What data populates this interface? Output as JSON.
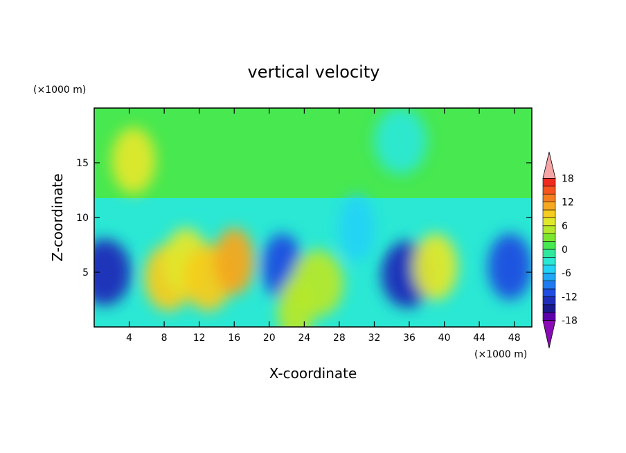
{
  "chart_data": {
    "type": "heatmap",
    "title": "vertical velocity",
    "xlabel": "X-coordinate",
    "ylabel": "Z-coordinate",
    "x_unit": "(×1000 m)",
    "y_unit": "(×1000 m)",
    "xlim": [
      0,
      50
    ],
    "ylim": [
      0,
      20
    ],
    "x_ticks": [
      "4",
      "8",
      "12",
      "16",
      "20",
      "24",
      "28",
      "32",
      "36",
      "40",
      "44",
      "48"
    ],
    "y_ticks": [
      "5",
      "10",
      "15"
    ],
    "colorbar": {
      "tick_labels": [
        "18",
        "12",
        "6",
        "0",
        "-6",
        "-12",
        "-18"
      ],
      "levels": [
        -20,
        -18,
        -16,
        -14,
        -12,
        -10,
        -8,
        -6,
        -4,
        -2,
        0,
        2,
        4,
        6,
        8,
        10,
        12,
        14,
        16,
        18,
        20
      ],
      "colors": [
        "#8a0ab5",
        "#5c00a8",
        "#1a1a8c",
        "#1f2db8",
        "#1f4ee0",
        "#1f7af0",
        "#1fa8f5",
        "#22d3f5",
        "#2ae8d4",
        "#2fe89e",
        "#47e850",
        "#7ae62e",
        "#b5e82a",
        "#e0e82a",
        "#f5cc1f",
        "#f5a81f",
        "#f57f1f",
        "#f5541f",
        "#ef2a1f",
        "#d41414",
        "#f5a5a5"
      ]
    },
    "features": [
      {
        "x": 1.2,
        "z": 5.0,
        "value": -14
      },
      {
        "x": 4.5,
        "z": 15.2,
        "value": 7
      },
      {
        "x": 8.5,
        "z": 4.5,
        "value": 8
      },
      {
        "x": 10.5,
        "z": 6.0,
        "value": 7
      },
      {
        "x": 13.0,
        "z": 4.5,
        "value": 8
      },
      {
        "x": 16.0,
        "z": 6.0,
        "value": 11
      },
      {
        "x": 21.5,
        "z": 5.5,
        "value": -11
      },
      {
        "x": 23.0,
        "z": 1.5,
        "value": 5
      },
      {
        "x": 25.5,
        "z": 4.0,
        "value": 4
      },
      {
        "x": 30.0,
        "z": 9.0,
        "value": -5
      },
      {
        "x": 35.8,
        "z": 4.8,
        "value": -14
      },
      {
        "x": 39.0,
        "z": 5.5,
        "value": 7
      },
      {
        "x": 47.5,
        "z": 5.5,
        "value": -12
      },
      {
        "x": 35.0,
        "z": 17.0,
        "value": -4
      }
    ]
  }
}
